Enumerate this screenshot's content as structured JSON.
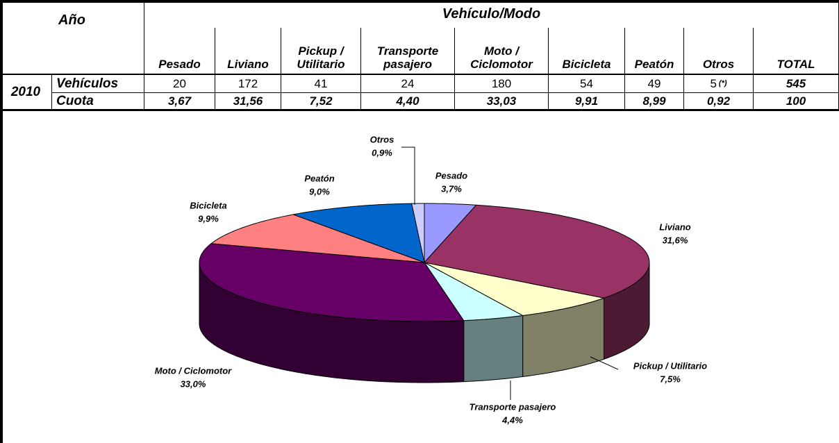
{
  "table": {
    "year_header": "Año",
    "group_header": "Vehículo/Modo",
    "columns": [
      "Pesado",
      "Liviano",
      "Pickup / Utilitario",
      "Transporte pasajero",
      "Moto / Ciclomotor",
      "Bicicleta",
      "Peatón",
      "Otros",
      "TOTAL"
    ],
    "year": "2010",
    "rows": [
      {
        "label": "Vehículos",
        "cells": [
          "20",
          "172",
          "41",
          "24",
          "180",
          "54",
          "49",
          "5",
          "545"
        ]
      },
      {
        "label": "Cuota",
        "cells": [
          "3,67",
          "31,56",
          "7,52",
          "4,40",
          "33,03",
          "9,91",
          "8,99",
          "0,92",
          "100"
        ]
      }
    ],
    "note": "(*)"
  },
  "chart_data": {
    "type": "pie",
    "categories": [
      "Pesado",
      "Liviano",
      "Pickup / Utilitario",
      "Transporte pasajero",
      "Moto / Ciclomotor",
      "Bicicleta",
      "Peatón",
      "Otros"
    ],
    "values": [
      3.7,
      31.6,
      7.5,
      4.4,
      33.0,
      9.9,
      9.0,
      0.9
    ],
    "value_labels": [
      "3,7%",
      "31,6%",
      "7,5%",
      "4,4%",
      "33,0%",
      "9,9%",
      "9,0%",
      "0,9%"
    ],
    "colors": [
      "#9999ff",
      "#993366",
      "#ffffcc",
      "#ccffff",
      "#660066",
      "#ff8080",
      "#0066cc",
      "#ccccff"
    ]
  }
}
